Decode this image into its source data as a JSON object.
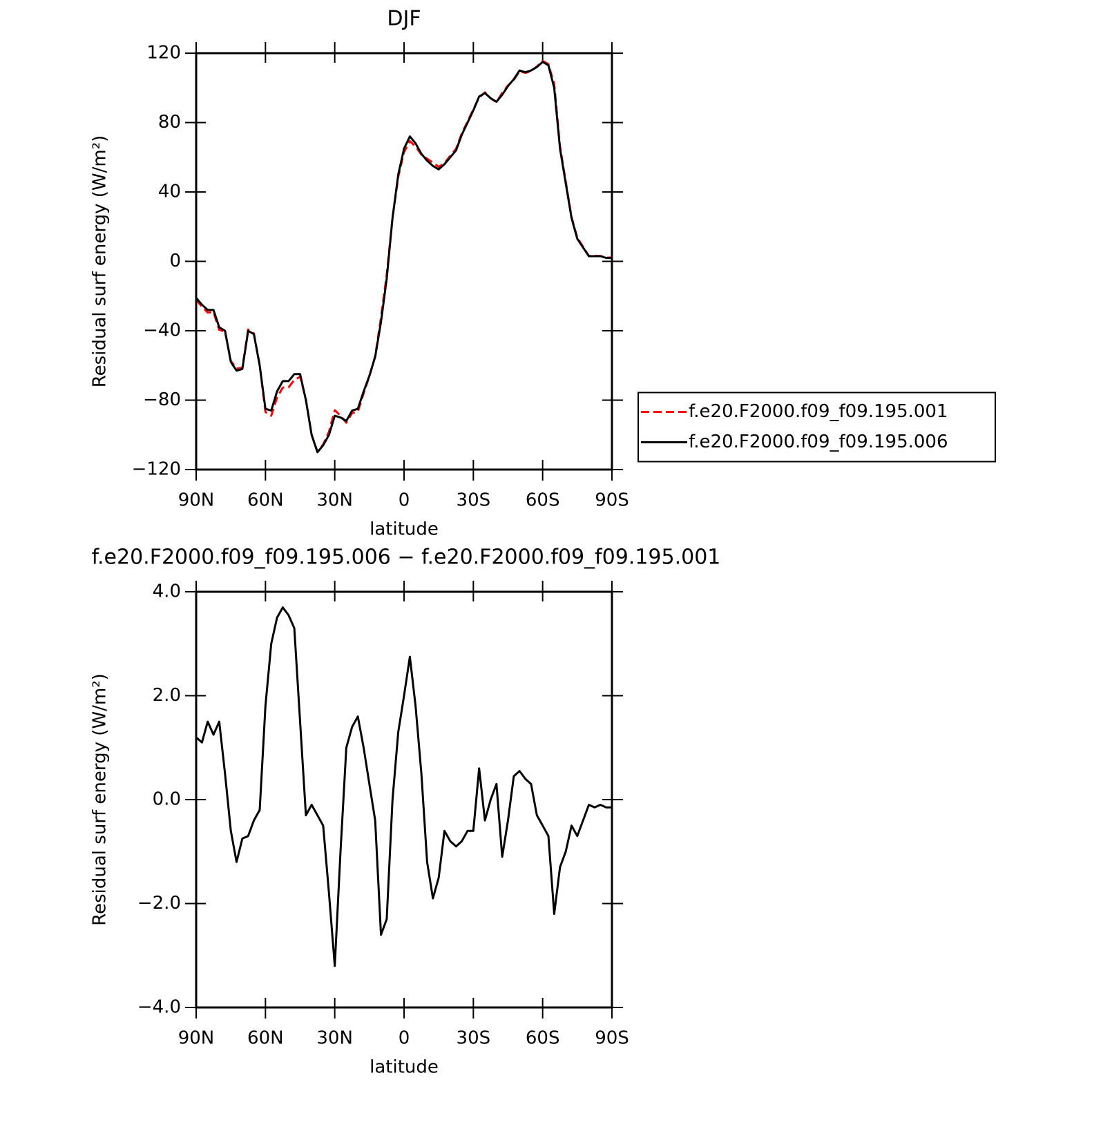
{
  "chart_data": [
    {
      "type": "line",
      "title": "DJF",
      "xlabel": "latitude",
      "ylabel": "Residual surf energy (W/m²)",
      "x": [
        90,
        87.5,
        85,
        82.5,
        80,
        77.5,
        75,
        72.5,
        70,
        67.5,
        65,
        62.5,
        60,
        57.5,
        55,
        52.5,
        50,
        47.5,
        45,
        42.5,
        40,
        37.5,
        35,
        32.5,
        30,
        27.5,
        25,
        22.5,
        20,
        17.5,
        15,
        12.5,
        10,
        7.5,
        5,
        2.5,
        0,
        -2.5,
        -5,
        -7.5,
        -10,
        -12.5,
        -15,
        -17.5,
        -20,
        -22.5,
        -25,
        -27.5,
        -30,
        -32.5,
        -35,
        -37.5,
        -40,
        -42.5,
        -45,
        -47.5,
        -50,
        -52.5,
        -55,
        -57.5,
        -60,
        -62.5,
        -65,
        -67.5,
        -70,
        -72.5,
        -75,
        -77.5,
        -80,
        -82.5,
        -85,
        -87.5,
        -90
      ],
      "series": [
        {
          "name": "f.e20.F2000.f09_f09.195.001",
          "color": "#ff0000",
          "dash": true,
          "values": [
            -22.2,
            -26.1,
            -29.5,
            -29.3,
            -39.5,
            -40.5,
            -57.4,
            -61.8,
            -61.3,
            -39.3,
            -41.6,
            -59.8,
            -86.8,
            -89,
            -78.5,
            -72.7,
            -72.6,
            -68.3,
            -66.5,
            -79.7,
            -99.9,
            -109.7,
            -105.5,
            -98.2,
            -85.8,
            -89,
            -93,
            -87.4,
            -86.6,
            -76,
            -66.3,
            -54.6,
            -32.4,
            -7.7,
            25,
            48.7,
            63,
            69.3,
            66.2,
            61.5,
            59.2,
            56.9,
            54.5,
            56.6,
            60.8,
            64.9,
            73.8,
            80.6,
            87.6,
            94.4,
            97.4,
            94,
            91.7,
            97.1,
            101.4,
            104.6,
            109.5,
            108.6,
            109.7,
            112.3,
            115.5,
            113.7,
            102.2,
            66.3,
            46,
            25.5,
            13.7,
            8.4,
            3.1,
            3.2,
            3.1,
            2.2,
            2.2
          ]
        },
        {
          "name": "f.e20.F2000.f09_f09.195.006",
          "color": "#000000",
          "dash": false,
          "values": [
            -21,
            -25,
            -28,
            -28,
            -38,
            -40,
            -58,
            -63,
            -62,
            -40,
            -42,
            -60,
            -85,
            -86,
            -75,
            -69,
            -69,
            -65,
            -65,
            -80,
            -100,
            -110,
            -106,
            -100,
            -89,
            -90,
            -92,
            -86,
            -85,
            -75,
            -66,
            -55,
            -35,
            -10,
            25,
            50,
            65,
            72,
            68,
            62,
            58,
            55,
            53,
            56,
            60,
            64,
            73,
            80,
            87,
            95,
            97,
            94,
            92,
            96,
            101,
            105,
            110,
            109,
            110,
            112,
            115,
            113,
            100,
            65,
            45,
            25,
            13,
            8,
            3,
            3,
            3,
            2,
            2
          ]
        }
      ],
      "xlim": [
        90,
        -90
      ],
      "xticks": [
        {
          "value": 90,
          "label": "90N"
        },
        {
          "value": 60,
          "label": "60N"
        },
        {
          "value": 30,
          "label": "30N"
        },
        0,
        {
          "value": -30,
          "label": "30S"
        },
        {
          "value": -60,
          "label": "60S"
        },
        {
          "value": -90,
          "label": "90S"
        }
      ],
      "ylim": [
        -120,
        120
      ],
      "yticks": [
        {
          "value": -120,
          "label": "−120"
        },
        {
          "value": -80,
          "label": "−80"
        },
        {
          "value": -40,
          "label": "−40"
        },
        0,
        40,
        80,
        120
      ],
      "legend": "right"
    },
    {
      "type": "line",
      "title": "f.e20.F2000.f09_f09.195.006 − f.e20.F2000.f09_f09.195.001",
      "xlabel": "latitude",
      "ylabel": "Residual surf energy (W/m²)",
      "x": [
        90,
        87.5,
        85,
        82.5,
        80,
        77.5,
        75,
        72.5,
        70,
        67.5,
        65,
        62.5,
        60,
        57.5,
        55,
        52.5,
        50,
        47.5,
        45,
        42.5,
        40,
        37.5,
        35,
        32.5,
        30,
        27.5,
        25,
        22.5,
        20,
        17.5,
        15,
        12.5,
        10,
        7.5,
        5,
        2.5,
        0,
        -2.5,
        -5,
        -7.5,
        -10,
        -12.5,
        -15,
        -17.5,
        -20,
        -22.5,
        -25,
        -27.5,
        -30,
        -32.5,
        -35,
        -37.5,
        -40,
        -42.5,
        -45,
        -47.5,
        -50,
        -52.5,
        -55,
        -57.5,
        -60,
        -62.5,
        -65,
        -67.5,
        -70,
        -72.5,
        -75,
        -77.5,
        -80,
        -82.5,
        -85,
        -87.5,
        -90
      ],
      "series": [
        {
          "color": "#000000",
          "dash": false,
          "values": [
            1.2,
            1.1,
            1.5,
            1.25,
            1.5,
            0.5,
            -0.6,
            -1.2,
            -0.75,
            -0.7,
            -0.4,
            -0.2,
            1.8,
            3.0,
            3.5,
            3.7,
            3.55,
            3.3,
            1.5,
            -0.3,
            -0.1,
            -0.3,
            -0.5,
            -1.8,
            -3.2,
            -1.0,
            1.0,
            1.4,
            1.6,
            1.0,
            0.3,
            -0.4,
            -2.6,
            -2.3,
            0.0,
            1.3,
            2.0,
            2.75,
            1.8,
            0.5,
            -1.2,
            -1.9,
            -1.5,
            -0.6,
            -0.8,
            -0.9,
            -0.8,
            -0.6,
            -0.6,
            0.6,
            -0.4,
            0.0,
            0.3,
            -1.1,
            -0.4,
            0.45,
            0.55,
            0.4,
            0.3,
            -0.3,
            -0.5,
            -0.7,
            -2.2,
            -1.3,
            -1.0,
            -0.5,
            -0.7,
            -0.4,
            -0.1,
            -0.15,
            -0.1,
            -0.15,
            -0.15
          ]
        }
      ],
      "xlim": [
        90,
        -90
      ],
      "xticks": [
        {
          "value": 90,
          "label": "90N"
        },
        {
          "value": 60,
          "label": "60N"
        },
        {
          "value": 30,
          "label": "30N"
        },
        0,
        {
          "value": -30,
          "label": "30S"
        },
        {
          "value": -60,
          "label": "60S"
        },
        {
          "value": -90,
          "label": "90S"
        }
      ],
      "ylim": [
        -4,
        4
      ],
      "yticks": [
        {
          "value": -4,
          "label": "−4.0"
        },
        {
          "value": -2,
          "label": "−2.0"
        },
        {
          "value": 0,
          "label": "0.0"
        },
        {
          "value": 2,
          "label": "2.0"
        },
        {
          "value": 4,
          "label": "4.0"
        }
      ]
    }
  ]
}
